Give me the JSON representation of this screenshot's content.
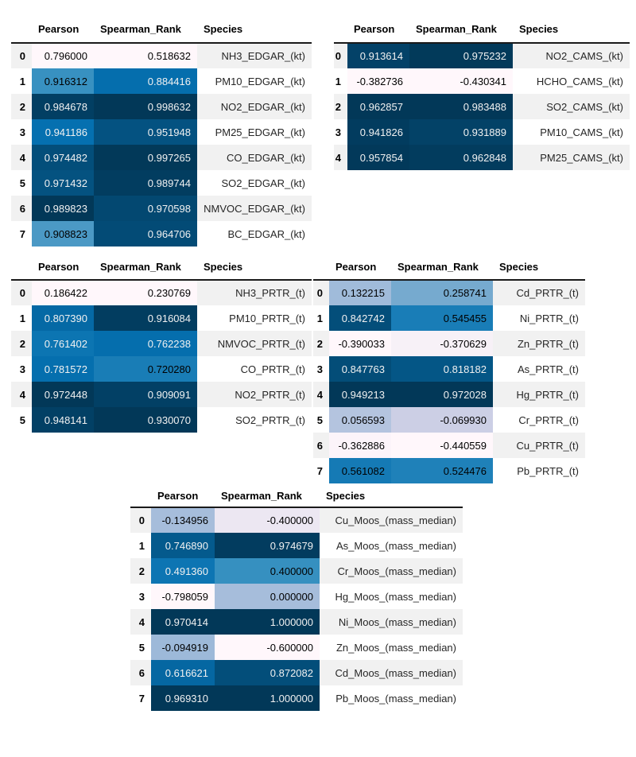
{
  "styles": {
    "background": "#ffffff",
    "stripe": "#f1f1f1",
    "header_border": "#1a1a1a",
    "text_dark": "#000000",
    "text_light": "#f1f1f1",
    "species_text": "#262626",
    "colormap_low": "#fff7fb",
    "colormap_high": "#023858"
  },
  "tables": [
    {
      "id": "edgar-kt",
      "columns": [
        "Pearson",
        "Spearman_Rank",
        "Species"
      ],
      "rows": [
        {
          "i": "0",
          "p": {
            "v": "0.796000",
            "bg": "#fff7fb",
            "fg": "#000000"
          },
          "s": {
            "v": "0.518632",
            "bg": "#fff7fb",
            "fg": "#000000"
          },
          "species": "NH3_EDGAR_(kt)"
        },
        {
          "i": "1",
          "p": {
            "v": "0.916312",
            "bg": "#3891c1",
            "fg": "#000000"
          },
          "s": {
            "v": "0.884416",
            "bg": "#056ead",
            "fg": "#f1f1f1"
          },
          "species": "PM10_EDGAR_(kt)"
        },
        {
          "i": "2",
          "p": {
            "v": "0.984678",
            "bg": "#023f63",
            "fg": "#f1f1f1"
          },
          "s": {
            "v": "0.998632",
            "bg": "#023858",
            "fg": "#f1f1f1"
          },
          "species": "NO2_EDGAR_(kt)"
        },
        {
          "i": "3",
          "p": {
            "v": "0.941186",
            "bg": "#0570b0",
            "fg": "#f1f1f1"
          },
          "s": {
            "v": "0.951948",
            "bg": "#045281",
            "fg": "#f1f1f1"
          },
          "species": "PM25_EDGAR_(kt)"
        },
        {
          "i": "4",
          "p": {
            "v": "0.974482",
            "bg": "#034e7a",
            "fg": "#f1f1f1"
          },
          "s": {
            "v": "0.997265",
            "bg": "#023959",
            "fg": "#f1f1f1"
          },
          "species": "CO_EDGAR_(kt)"
        },
        {
          "i": "5",
          "p": {
            "v": "0.971432",
            "bg": "#045280",
            "fg": "#f1f1f1"
          },
          "s": {
            "v": "0.989744",
            "bg": "#023d60",
            "fg": "#f1f1f1"
          },
          "species": "SO2_EDGAR_(kt)"
        },
        {
          "i": "6",
          "p": {
            "v": "0.989823",
            "bg": "#023858",
            "fg": "#f1f1f1"
          },
          "s": {
            "v": "0.970598",
            "bg": "#034871",
            "fg": "#f1f1f1"
          },
          "species": "NMVOC_EDGAR_(kt)"
        },
        {
          "i": "7",
          "p": {
            "v": "0.908823",
            "bg": "#4b99c5",
            "fg": "#000000"
          },
          "s": {
            "v": "0.964706",
            "bg": "#034b76",
            "fg": "#f1f1f1"
          },
          "species": "BC_EDGAR_(kt)"
        }
      ]
    },
    {
      "id": "cams-kt",
      "columns": [
        "Pearson",
        "Spearman_Rank",
        "Species"
      ],
      "rows": [
        {
          "i": "0",
          "p": {
            "v": "0.913614",
            "bg": "#034268",
            "fg": "#f1f1f1"
          },
          "s": {
            "v": "0.975232",
            "bg": "#023a5a",
            "fg": "#f1f1f1"
          },
          "species": "NO2_CAMS_(kt)"
        },
        {
          "i": "1",
          "p": {
            "v": "-0.382736",
            "bg": "#fff7fb",
            "fg": "#000000"
          },
          "s": {
            "v": "-0.430341",
            "bg": "#fff7fb",
            "fg": "#000000"
          },
          "species": "HCHO_CAMS_(kt)"
        },
        {
          "i": "2",
          "p": {
            "v": "0.962857",
            "bg": "#023858",
            "fg": "#f1f1f1"
          },
          "s": {
            "v": "0.983488",
            "bg": "#023858",
            "fg": "#f1f1f1"
          },
          "species": "SO2_CAMS_(kt)"
        },
        {
          "i": "3",
          "p": {
            "v": "0.941826",
            "bg": "#023c5f",
            "fg": "#f1f1f1"
          },
          "s": {
            "v": "0.931889",
            "bg": "#034267",
            "fg": "#f1f1f1"
          },
          "species": "PM10_CAMS_(kt)"
        },
        {
          "i": "4",
          "p": {
            "v": "0.957854",
            "bg": "#02395a",
            "fg": "#f1f1f1"
          },
          "s": {
            "v": "0.962848",
            "bg": "#023c5e",
            "fg": "#f1f1f1"
          },
          "species": "PM25_CAMS_(kt)"
        }
      ]
    },
    {
      "id": "prtr-t-gases",
      "columns": [
        "Pearson",
        "Spearman_Rank",
        "Species"
      ],
      "rows": [
        {
          "i": "0",
          "p": {
            "v": "0.186422",
            "bg": "#fff7fb",
            "fg": "#000000"
          },
          "s": {
            "v": "0.230769",
            "bg": "#fff7fb",
            "fg": "#000000"
          },
          "species": "NH3_PRTR_(t)"
        },
        {
          "i": "1",
          "p": {
            "v": "0.807390",
            "bg": "#0569a5",
            "fg": "#f1f1f1"
          },
          "s": {
            "v": "0.916084",
            "bg": "#023d60",
            "fg": "#f1f1f1"
          },
          "species": "PM10_PRTR_(t)"
        },
        {
          "i": "2",
          "p": {
            "v": "0.761402",
            "bg": "#0c75b2",
            "fg": "#f1f1f1"
          },
          "s": {
            "v": "0.762238",
            "bg": "#056ead",
            "fg": "#f1f1f1"
          },
          "species": "NMVOC_PRTR_(t)"
        },
        {
          "i": "3",
          "p": {
            "v": "0.781572",
            "bg": "#056fae",
            "fg": "#f1f1f1"
          },
          "s": {
            "v": "0.720280",
            "bg": "#197db6",
            "fg": "#000000"
          },
          "species": "CO_PRTR_(t)"
        },
        {
          "i": "4",
          "p": {
            "v": "0.972448",
            "bg": "#023858",
            "fg": "#f1f1f1"
          },
          "s": {
            "v": "0.909091",
            "bg": "#024065",
            "fg": "#f1f1f1"
          },
          "species": "NO2_PRTR_(t)"
        },
        {
          "i": "5",
          "p": {
            "v": "0.948141",
            "bg": "#024065",
            "fg": "#f1f1f1"
          },
          "s": {
            "v": "0.930070",
            "bg": "#023858",
            "fg": "#f1f1f1"
          },
          "species": "SO2_PRTR_(t)"
        }
      ]
    },
    {
      "id": "prtr-t-metals",
      "columns": [
        "Pearson",
        "Spearman_Rank",
        "Species"
      ],
      "rows": [
        {
          "i": "0",
          "p": {
            "v": "0.132215",
            "bg": "#a0bbda",
            "fg": "#000000"
          },
          "s": {
            "v": "0.258741",
            "bg": "#76aacf",
            "fg": "#000000"
          },
          "species": "Cd_PRTR_(t)"
        },
        {
          "i": "1",
          "p": {
            "v": "0.842742",
            "bg": "#034e7a",
            "fg": "#f1f1f1"
          },
          "s": {
            "v": "0.545455",
            "bg": "#197db7",
            "fg": "#000000"
          },
          "species": "Ni_PRTR_(t)"
        },
        {
          "i": "2",
          "p": {
            "v": "-0.390033",
            "bg": "#fff7fb",
            "fg": "#000000"
          },
          "s": {
            "v": "-0.370629",
            "bg": "#f7f1f7",
            "fg": "#000000"
          },
          "species": "Zn_PRTR_(t)"
        },
        {
          "i": "3",
          "p": {
            "v": "0.847763",
            "bg": "#034d78",
            "fg": "#f1f1f1"
          },
          "s": {
            "v": "0.818182",
            "bg": "#045686",
            "fg": "#f1f1f1"
          },
          "species": "As_PRTR_(t)"
        },
        {
          "i": "4",
          "p": {
            "v": "0.949213",
            "bg": "#023858",
            "fg": "#f1f1f1"
          },
          "s": {
            "v": "0.972028",
            "bg": "#023858",
            "fg": "#f1f1f1"
          },
          "species": "Hg_PRTR_(t)"
        },
        {
          "i": "5",
          "p": {
            "v": "0.056593",
            "bg": "#b4c4df",
            "fg": "#000000"
          },
          "s": {
            "v": "-0.069930",
            "bg": "#cccfe5",
            "fg": "#000000"
          },
          "species": "Cr_PRTR_(t)"
        },
        {
          "i": "6",
          "p": {
            "v": "-0.362886",
            "bg": "#fcf4fa",
            "fg": "#000000"
          },
          "s": {
            "v": "-0.440559",
            "bg": "#fff7fb",
            "fg": "#000000"
          },
          "species": "Cu_PRTR_(t)"
        },
        {
          "i": "7",
          "p": {
            "v": "0.561082",
            "bg": "#157ab5",
            "fg": "#000000"
          },
          "s": {
            "v": "0.524476",
            "bg": "#1f81b9",
            "fg": "#000000"
          },
          "species": "Pb_PRTR_(t)"
        }
      ]
    },
    {
      "id": "moos-mass-median",
      "columns": [
        "Pearson",
        "Spearman_Rank",
        "Species"
      ],
      "rows": [
        {
          "i": "0",
          "p": {
            "v": "-0.134956",
            "bg": "#a6bddb",
            "fg": "#000000"
          },
          "s": {
            "v": "-0.400000",
            "bg": "#ece7f2",
            "fg": "#000000"
          },
          "species": "Cu_Moos_(mass_median)"
        },
        {
          "i": "1",
          "p": {
            "v": "0.746890",
            "bg": "#045a8d",
            "fg": "#f1f1f1"
          },
          "s": {
            "v": "0.974679",
            "bg": "#023c5f",
            "fg": "#f1f1f1"
          },
          "species": "As_Moos_(mass_median)"
        },
        {
          "i": "2",
          "p": {
            "v": "0.491360",
            "bg": "#0d75b3",
            "fg": "#f1f1f1"
          },
          "s": {
            "v": "0.400000",
            "bg": "#3690c0",
            "fg": "#000000"
          },
          "species": "Cr_Moos_(mass_median)"
        },
        {
          "i": "3",
          "p": {
            "v": "-0.798059",
            "bg": "#fff7fb",
            "fg": "#000000"
          },
          "s": {
            "v": "0.000000",
            "bg": "#a6bddb",
            "fg": "#000000"
          },
          "species": "Hg_Moos_(mass_median)"
        },
        {
          "i": "4",
          "p": {
            "v": "0.970414",
            "bg": "#023858",
            "fg": "#f1f1f1"
          },
          "s": {
            "v": "1.000000",
            "bg": "#023858",
            "fg": "#f1f1f1"
          },
          "species": "Ni_Moos_(mass_median)"
        },
        {
          "i": "5",
          "p": {
            "v": "-0.094919",
            "bg": "#9db9d9",
            "fg": "#000000"
          },
          "s": {
            "v": "-0.600000",
            "bg": "#fff7fb",
            "fg": "#000000"
          },
          "species": "Zn_Moos_(mass_median)"
        },
        {
          "i": "6",
          "p": {
            "v": "0.616621",
            "bg": "#0567a2",
            "fg": "#f1f1f1"
          },
          "s": {
            "v": "0.872082",
            "bg": "#034e7a",
            "fg": "#f1f1f1"
          },
          "species": "Cd_Moos_(mass_median)"
        },
        {
          "i": "7",
          "p": {
            "v": "0.969310",
            "bg": "#023858",
            "fg": "#f1f1f1"
          },
          "s": {
            "v": "1.000000",
            "bg": "#023858",
            "fg": "#f1f1f1"
          },
          "species": "Pb_Moos_(mass_median)"
        }
      ]
    }
  ],
  "chart_data": [
    {
      "type": "table",
      "columns": [
        "Pearson",
        "Spearman_Rank",
        "Species"
      ],
      "index": [
        0,
        1,
        2,
        3,
        4,
        5,
        6,
        7
      ],
      "rows": [
        [
          0.796,
          0.518632,
          "NH3_EDGAR_(kt)"
        ],
        [
          0.916312,
          0.884416,
          "PM10_EDGAR_(kt)"
        ],
        [
          0.984678,
          0.998632,
          "NO2_EDGAR_(kt)"
        ],
        [
          0.941186,
          0.951948,
          "PM25_EDGAR_(kt)"
        ],
        [
          0.974482,
          0.997265,
          "CO_EDGAR_(kt)"
        ],
        [
          0.971432,
          0.989744,
          "SO2_EDGAR_(kt)"
        ],
        [
          0.989823,
          0.970598,
          "NMVOC_EDGAR_(kt)"
        ],
        [
          0.908823,
          0.964706,
          "BC_EDGAR_(kt)"
        ]
      ]
    },
    {
      "type": "table",
      "columns": [
        "Pearson",
        "Spearman_Rank",
        "Species"
      ],
      "index": [
        0,
        1,
        2,
        3,
        4
      ],
      "rows": [
        [
          0.913614,
          0.975232,
          "NO2_CAMS_(kt)"
        ],
        [
          -0.382736,
          -0.430341,
          "HCHO_CAMS_(kt)"
        ],
        [
          0.962857,
          0.983488,
          "SO2_CAMS_(kt)"
        ],
        [
          0.941826,
          0.931889,
          "PM10_CAMS_(kt)"
        ],
        [
          0.957854,
          0.962848,
          "PM25_CAMS_(kt)"
        ]
      ]
    },
    {
      "type": "table",
      "columns": [
        "Pearson",
        "Spearman_Rank",
        "Species"
      ],
      "index": [
        0,
        1,
        2,
        3,
        4,
        5
      ],
      "rows": [
        [
          0.186422,
          0.230769,
          "NH3_PRTR_(t)"
        ],
        [
          0.80739,
          0.916084,
          "PM10_PRTR_(t)"
        ],
        [
          0.761402,
          0.762238,
          "NMVOC_PRTR_(t)"
        ],
        [
          0.781572,
          0.72028,
          "CO_PRTR_(t)"
        ],
        [
          0.972448,
          0.909091,
          "NO2_PRTR_(t)"
        ],
        [
          0.948141,
          0.93007,
          "SO2_PRTR_(t)"
        ]
      ]
    },
    {
      "type": "table",
      "columns": [
        "Pearson",
        "Spearman_Rank",
        "Species"
      ],
      "index": [
        0,
        1,
        2,
        3,
        4,
        5,
        6,
        7
      ],
      "rows": [
        [
          0.132215,
          0.258741,
          "Cd_PRTR_(t)"
        ],
        [
          0.842742,
          0.545455,
          "Ni_PRTR_(t)"
        ],
        [
          -0.390033,
          -0.370629,
          "Zn_PRTR_(t)"
        ],
        [
          0.847763,
          0.818182,
          "As_PRTR_(t)"
        ],
        [
          0.949213,
          0.972028,
          "Hg_PRTR_(t)"
        ],
        [
          0.056593,
          -0.06993,
          "Cr_PRTR_(t)"
        ],
        [
          -0.362886,
          -0.440559,
          "Cu_PRTR_(t)"
        ],
        [
          0.561082,
          0.524476,
          "Pb_PRTR_(t)"
        ]
      ]
    },
    {
      "type": "table",
      "columns": [
        "Pearson",
        "Spearman_Rank",
        "Species"
      ],
      "index": [
        0,
        1,
        2,
        3,
        4,
        5,
        6,
        7
      ],
      "rows": [
        [
          -0.134956,
          -0.4,
          "Cu_Moos_(mass_median)"
        ],
        [
          0.74689,
          0.974679,
          "As_Moos_(mass_median)"
        ],
        [
          0.49136,
          0.4,
          "Cr_Moos_(mass_median)"
        ],
        [
          -0.798059,
          0.0,
          "Hg_Moos_(mass_median)"
        ],
        [
          0.970414,
          1.0,
          "Ni_Moos_(mass_median)"
        ],
        [
          -0.094919,
          -0.6,
          "Zn_Moos_(mass_median)"
        ],
        [
          0.616621,
          0.872082,
          "Cd_Moos_(mass_median)"
        ],
        [
          0.96931,
          1.0,
          "Pb_Moos_(mass_median)"
        ]
      ]
    }
  ]
}
